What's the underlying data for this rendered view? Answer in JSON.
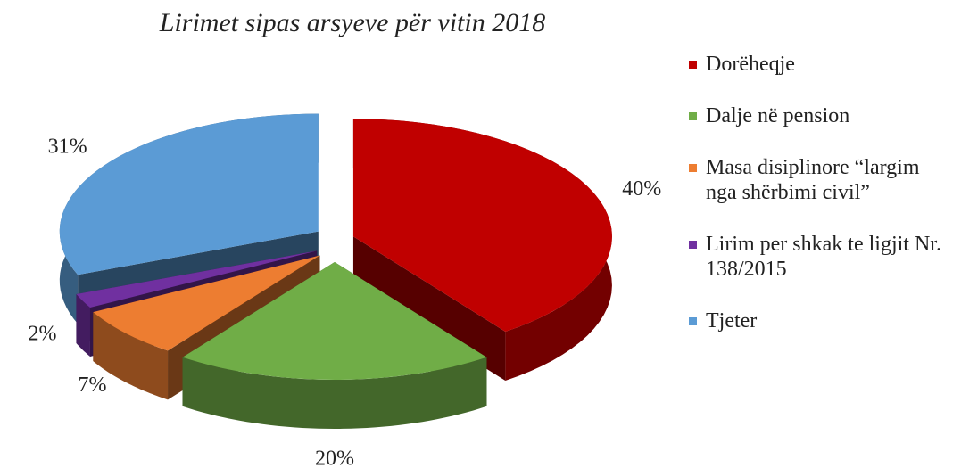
{
  "chart_data": {
    "type": "pie",
    "title": "Lirimet sipas arsyeve për vitin 2018",
    "categories": [
      "Dorëheqje",
      "Dalje në pension",
      "Masa disiplinore “largim nga shërbimi civil”",
      "Lirim per shkak te ligjit Nr. 138/2015",
      "Tjeter"
    ],
    "values": [
      40,
      20,
      7,
      2,
      31
    ],
    "value_labels": [
      "40%",
      "20%",
      "7%",
      "2%",
      "31%"
    ],
    "colors": [
      "#c00000",
      "#70ad47",
      "#ed7d31",
      "#7030a0",
      "#5b9bd5"
    ],
    "legend": "right"
  }
}
